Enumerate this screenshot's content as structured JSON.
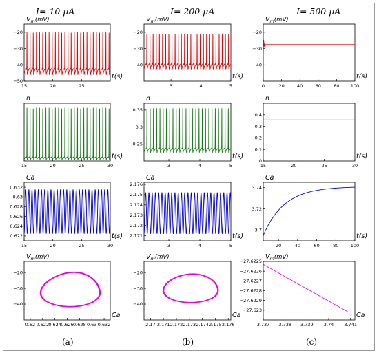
{
  "headers": [
    "I= 10 μA",
    "I= 200 μA",
    "I= 500 μA"
  ],
  "column_labels": [
    "(a)",
    "(b)",
    "(c)"
  ],
  "chart_data": [
    {
      "id": "a1",
      "type": "line",
      "row": 0,
      "col": 0,
      "color": "#e00000",
      "ylabel": "V",
      "ylabel_sub": "m",
      "ylabel_unit": "(mV)",
      "xlabel": "t(s)",
      "xlim": [
        15,
        30
      ],
      "ylim": [
        -50,
        -15
      ],
      "xticks": [
        15,
        20,
        25
      ],
      "yticks": [
        -50,
        -40,
        -30,
        -20
      ],
      "signal": {
        "kind": "spikes",
        "period": 0.55,
        "base": -43,
        "peak": -20,
        "trough": -46
      }
    },
    {
      "id": "b1",
      "type": "line",
      "row": 0,
      "col": 1,
      "color": "#e00000",
      "ylabel": "V",
      "ylabel_sub": "m",
      "ylabel_unit": "(mV)",
      "xlabel": "t(s)",
      "xlim": [
        2.1,
        5
      ],
      "ylim": [
        -50,
        -15
      ],
      "xticks": [
        3,
        4,
        5
      ],
      "yticks": [
        -40,
        -30,
        -20
      ],
      "signal": {
        "kind": "spikes",
        "period": 0.105,
        "base": -40,
        "peak": -21,
        "trough": -43
      }
    },
    {
      "id": "c1",
      "type": "line",
      "row": 0,
      "col": 2,
      "color": "#e00000",
      "ylabel": "V",
      "ylabel_sub": "m",
      "ylabel_unit": "(mV)",
      "xlabel": "t(s)",
      "xlim": [
        0,
        100
      ],
      "ylim": [
        -50,
        -15
      ],
      "xticks": [
        0,
        20,
        40,
        60,
        80,
        100
      ],
      "yticks": [
        -40,
        -30,
        -20
      ],
      "signal": {
        "kind": "settle",
        "level": -27.6,
        "start": -34
      }
    },
    {
      "id": "a2",
      "type": "line",
      "row": 1,
      "col": 0,
      "color": "#1a7a1a",
      "ylabel": "n",
      "xlabel": "t(s)",
      "xlim": [
        15,
        30
      ],
      "ylim": [
        0,
        1
      ],
      "xticks": [
        15,
        20,
        25,
        30
      ],
      "yticks": [],
      "signal": {
        "kind": "spikes",
        "period": 0.55,
        "base": 0.06,
        "peak": 0.92,
        "trough": 0.02
      }
    },
    {
      "id": "b2",
      "type": "line",
      "row": 1,
      "col": 1,
      "color": "#1a7a1a",
      "ylabel": "n",
      "xlabel": "t(s)",
      "xlim": [
        2.2,
        5
      ],
      "ylim": [
        0.2,
        0.37
      ],
      "xticks": [
        3,
        4,
        5
      ],
      "yticks": [
        0.25,
        0.3,
        0.35
      ],
      "signal": {
        "kind": "spikes",
        "period": 0.105,
        "base": 0.235,
        "peak": 0.355,
        "trough": 0.225
      }
    },
    {
      "id": "c2",
      "type": "line",
      "row": 1,
      "col": 2,
      "color": "#1a7a1a",
      "ylabel": "n",
      "xlabel": "t(s)",
      "xlim": [
        15,
        30
      ],
      "ylim": [
        0,
        0.5
      ],
      "xticks": [
        15,
        20,
        25,
        30
      ],
      "yticks": [
        0,
        0.1,
        0.2,
        0.3,
        0.4
      ],
      "signal": {
        "kind": "flat",
        "level": 0.355
      }
    },
    {
      "id": "a3",
      "type": "line",
      "row": 2,
      "col": 0,
      "color": "#0000dd",
      "ylabel": "Ca",
      "xlabel": "t(s)",
      "xlim": [
        15,
        30
      ],
      "ylim": [
        0.621,
        0.633
      ],
      "xticks": [
        15,
        20,
        25,
        30
      ],
      "yticks": [
        0.622,
        0.624,
        0.626,
        0.628,
        0.63,
        0.632
      ],
      "signal": {
        "kind": "wave",
        "period": 0.55,
        "base": 0.6225,
        "peak": 0.6315
      }
    },
    {
      "id": "b3",
      "type": "line",
      "row": 2,
      "col": 1,
      "color": "#0000dd",
      "ylabel": "Ca",
      "xlabel": "t(s)",
      "xlim": [
        2.2,
        5
      ],
      "ylim": [
        2.1705,
        2.1762
      ],
      "xticks": [
        3,
        4,
        5
      ],
      "yticks": [
        2.171,
        2.172,
        2.173,
        2.174,
        2.175,
        2.176
      ],
      "signal": {
        "kind": "wave",
        "period": 0.105,
        "base": 2.1712,
        "peak": 2.1752
      }
    },
    {
      "id": "c3",
      "type": "line",
      "row": 2,
      "col": 2,
      "color": "#0000dd",
      "ylabel": "Ca",
      "xlabel": "t(s)",
      "xlim": [
        4,
        100
      ],
      "ylim": [
        3.69,
        3.745
      ],
      "xticks": [
        20,
        40,
        60,
        80,
        100
      ],
      "yticks": [
        3.7,
        3.72,
        3.74
      ],
      "signal": {
        "kind": "rise",
        "start": 3.695,
        "end": 3.741,
        "tau": 22
      }
    },
    {
      "id": "a4",
      "type": "line",
      "row": 3,
      "col": 0,
      "color": "#e600e6",
      "ylabel": "V",
      "ylabel_sub": "m",
      "ylabel_unit": "(mV)",
      "xlabel": "Ca",
      "xlim": [
        0.619,
        0.633
      ],
      "ylim": [
        -50,
        -13
      ],
      "xticks": [
        0.62,
        0.622,
        0.624,
        0.626,
        0.628,
        0.63,
        0.632
      ],
      "yticks": [
        -40,
        -30,
        -20
      ],
      "signal": {
        "kind": "loop",
        "cx": 0.6265,
        "cy": -32,
        "rx": 0.0048,
        "ry": 12,
        "skew": 0.35
      }
    },
    {
      "id": "b4",
      "type": "line",
      "row": 3,
      "col": 1,
      "color": "#e600e6",
      "ylabel": "V",
      "ylabel_sub": "m",
      "ylabel_unit": "(mV)",
      "xlabel": "Ca",
      "xlim": [
        2.1695,
        2.1762
      ],
      "ylim": [
        -50,
        -13
      ],
      "xticks": [
        2.17,
        2.171,
        2.172,
        2.173,
        2.174,
        2.175,
        2.176
      ],
      "yticks": [
        -40,
        -30,
        -20
      ],
      "signal": {
        "kind": "loop",
        "cx": 2.1731,
        "cy": -31,
        "rx": 0.0021,
        "ry": 10,
        "skew": 0.2
      }
    },
    {
      "id": "c4",
      "type": "line",
      "row": 3,
      "col": 2,
      "color": "#e600e6",
      "ylabel": "V",
      "ylabel_sub": "m",
      "ylabel_unit": "(mV)",
      "xlabel": "Ca",
      "xlim": [
        3.737,
        3.7412
      ],
      "ylim": [
        -27.6231,
        -27.6225
      ],
      "xticks": [
        3.737,
        3.738,
        3.739,
        3.74,
        3.741
      ],
      "yticks": [
        -27.6225,
        -27.6226,
        -27.6227,
        -27.6228,
        -27.6229,
        -27.623
      ],
      "signal": {
        "kind": "linear",
        "x0": 3.737,
        "y0": -27.62253,
        "x1": 3.7409,
        "y1": -27.62302
      }
    }
  ]
}
